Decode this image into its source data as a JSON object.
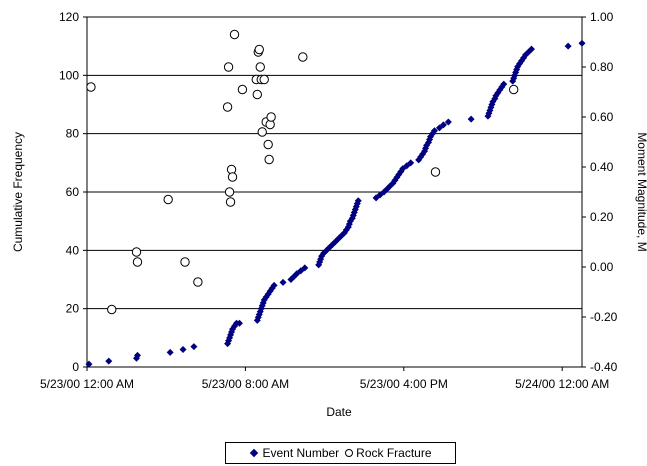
{
  "chart_data": {
    "type": "scatter",
    "xlabel": "Date",
    "ylabel": "Cumulative Frequency",
    "y2label": "Moment Magnitude, M",
    "x_ticks": [
      "5/23/00 12:00 AM",
      "5/23/00 8:00 AM",
      "5/23/00 4:00 PM",
      "5/24/00 12:00 AM"
    ],
    "x_tick_hours": [
      0,
      8,
      16,
      24
    ],
    "xlim_hours": [
      0,
      25
    ],
    "ylim": [
      0,
      120
    ],
    "y_ticks": [
      "0",
      "20",
      "40",
      "60",
      "80",
      "100",
      "120"
    ],
    "y_tick_values": [
      0,
      20,
      40,
      60,
      80,
      100,
      120
    ],
    "y2lim": [
      -0.4,
      1.0
    ],
    "y2_ticks": [
      "-0.40",
      "-0.20",
      "0.00",
      "0.20",
      "0.40",
      "0.60",
      "0.80",
      "1.00"
    ],
    "y2_tick_values": [
      -0.4,
      -0.2,
      0.0,
      0.2,
      0.4,
      0.6,
      0.8,
      1.0
    ],
    "grid": "horizontal",
    "legend_position": "bottom",
    "series": [
      {
        "name": "Event Number",
        "axis": "left",
        "marker": "diamond",
        "color": "#000080",
        "points": [
          [
            0.1,
            1
          ],
          [
            1.1,
            2
          ],
          [
            2.5,
            3
          ],
          [
            2.55,
            4
          ],
          [
            4.2,
            5
          ],
          [
            4.85,
            6
          ],
          [
            5.4,
            7
          ],
          [
            7.1,
            8
          ],
          [
            7.15,
            9
          ],
          [
            7.2,
            10
          ],
          [
            7.25,
            11
          ],
          [
            7.3,
            12
          ],
          [
            7.35,
            13
          ],
          [
            7.45,
            14
          ],
          [
            7.55,
            15
          ],
          [
            7.7,
            15
          ],
          [
            8.6,
            16
          ],
          [
            8.65,
            17
          ],
          [
            8.7,
            18
          ],
          [
            8.75,
            19
          ],
          [
            8.8,
            20
          ],
          [
            8.85,
            21
          ],
          [
            8.9,
            22
          ],
          [
            8.95,
            23
          ],
          [
            9.05,
            24
          ],
          [
            9.15,
            25
          ],
          [
            9.25,
            26
          ],
          [
            9.35,
            27
          ],
          [
            9.45,
            28
          ],
          [
            9.9,
            29
          ],
          [
            10.3,
            30
          ],
          [
            10.45,
            31
          ],
          [
            10.6,
            32
          ],
          [
            10.8,
            33
          ],
          [
            11.0,
            34
          ],
          [
            11.7,
            35
          ],
          [
            11.75,
            36
          ],
          [
            11.8,
            37
          ],
          [
            11.85,
            38
          ],
          [
            11.95,
            39
          ],
          [
            12.1,
            40
          ],
          [
            12.25,
            41
          ],
          [
            12.4,
            42
          ],
          [
            12.55,
            43
          ],
          [
            12.7,
            44
          ],
          [
            12.85,
            45
          ],
          [
            13.0,
            46
          ],
          [
            13.1,
            47
          ],
          [
            13.2,
            48
          ],
          [
            13.25,
            49
          ],
          [
            13.3,
            50
          ],
          [
            13.4,
            51
          ],
          [
            13.45,
            52
          ],
          [
            13.5,
            53
          ],
          [
            13.55,
            54
          ],
          [
            13.6,
            55
          ],
          [
            13.65,
            56
          ],
          [
            13.7,
            57
          ],
          [
            14.6,
            58
          ],
          [
            14.8,
            59
          ],
          [
            15.0,
            60
          ],
          [
            15.15,
            61
          ],
          [
            15.3,
            62
          ],
          [
            15.45,
            63
          ],
          [
            15.55,
            64
          ],
          [
            15.65,
            65
          ],
          [
            15.75,
            66
          ],
          [
            15.85,
            67
          ],
          [
            15.95,
            68
          ],
          [
            16.15,
            69
          ],
          [
            16.35,
            70
          ],
          [
            16.75,
            71
          ],
          [
            16.85,
            72
          ],
          [
            16.95,
            73
          ],
          [
            17.05,
            74
          ],
          [
            17.1,
            75
          ],
          [
            17.15,
            76
          ],
          [
            17.25,
            77
          ],
          [
            17.3,
            78
          ],
          [
            17.35,
            79
          ],
          [
            17.45,
            80
          ],
          [
            17.55,
            81
          ],
          [
            17.8,
            82
          ],
          [
            18.0,
            83
          ],
          [
            18.25,
            84
          ],
          [
            19.4,
            85
          ],
          [
            20.25,
            86
          ],
          [
            20.3,
            87
          ],
          [
            20.35,
            88
          ],
          [
            20.4,
            89
          ],
          [
            20.45,
            90
          ],
          [
            20.5,
            91
          ],
          [
            20.6,
            92
          ],
          [
            20.65,
            93
          ],
          [
            20.75,
            94
          ],
          [
            20.85,
            95
          ],
          [
            20.95,
            96
          ],
          [
            21.05,
            97
          ],
          [
            21.5,
            98
          ],
          [
            21.55,
            99
          ],
          [
            21.6,
            100
          ],
          [
            21.65,
            101
          ],
          [
            21.7,
            102
          ],
          [
            21.75,
            103
          ],
          [
            21.85,
            104
          ],
          [
            21.95,
            105
          ],
          [
            22.05,
            106
          ],
          [
            22.15,
            107
          ],
          [
            22.3,
            108
          ],
          [
            22.45,
            109
          ],
          [
            24.3,
            110
          ],
          [
            25.0,
            111
          ]
        ]
      },
      {
        "name": "Rock Fracture",
        "axis": "right",
        "marker": "circle-open",
        "color": "#000000",
        "points": [
          [
            0.2,
            0.72
          ],
          [
            1.25,
            -0.17
          ],
          [
            2.5,
            0.06
          ],
          [
            2.55,
            0.02
          ],
          [
            4.1,
            0.27
          ],
          [
            4.95,
            0.02
          ],
          [
            5.6,
            -0.06
          ],
          [
            7.1,
            0.64
          ],
          [
            7.15,
            0.8
          ],
          [
            7.2,
            0.3
          ],
          [
            7.25,
            0.26
          ],
          [
            7.3,
            0.39
          ],
          [
            7.35,
            0.36
          ],
          [
            7.45,
            0.93
          ],
          [
            7.85,
            0.71
          ],
          [
            8.55,
            0.75
          ],
          [
            8.6,
            0.69
          ],
          [
            8.65,
            0.86
          ],
          [
            8.7,
            0.87
          ],
          [
            8.75,
            0.8
          ],
          [
            8.8,
            0.75
          ],
          [
            8.85,
            0.54
          ],
          [
            8.95,
            0.75
          ],
          [
            9.05,
            0.58
          ],
          [
            9.15,
            0.49
          ],
          [
            9.2,
            0.43
          ],
          [
            9.25,
            0.57
          ],
          [
            9.3,
            0.6
          ],
          [
            10.9,
            0.84
          ],
          [
            17.6,
            0.38
          ],
          [
            21.55,
            0.71
          ]
        ]
      }
    ]
  }
}
